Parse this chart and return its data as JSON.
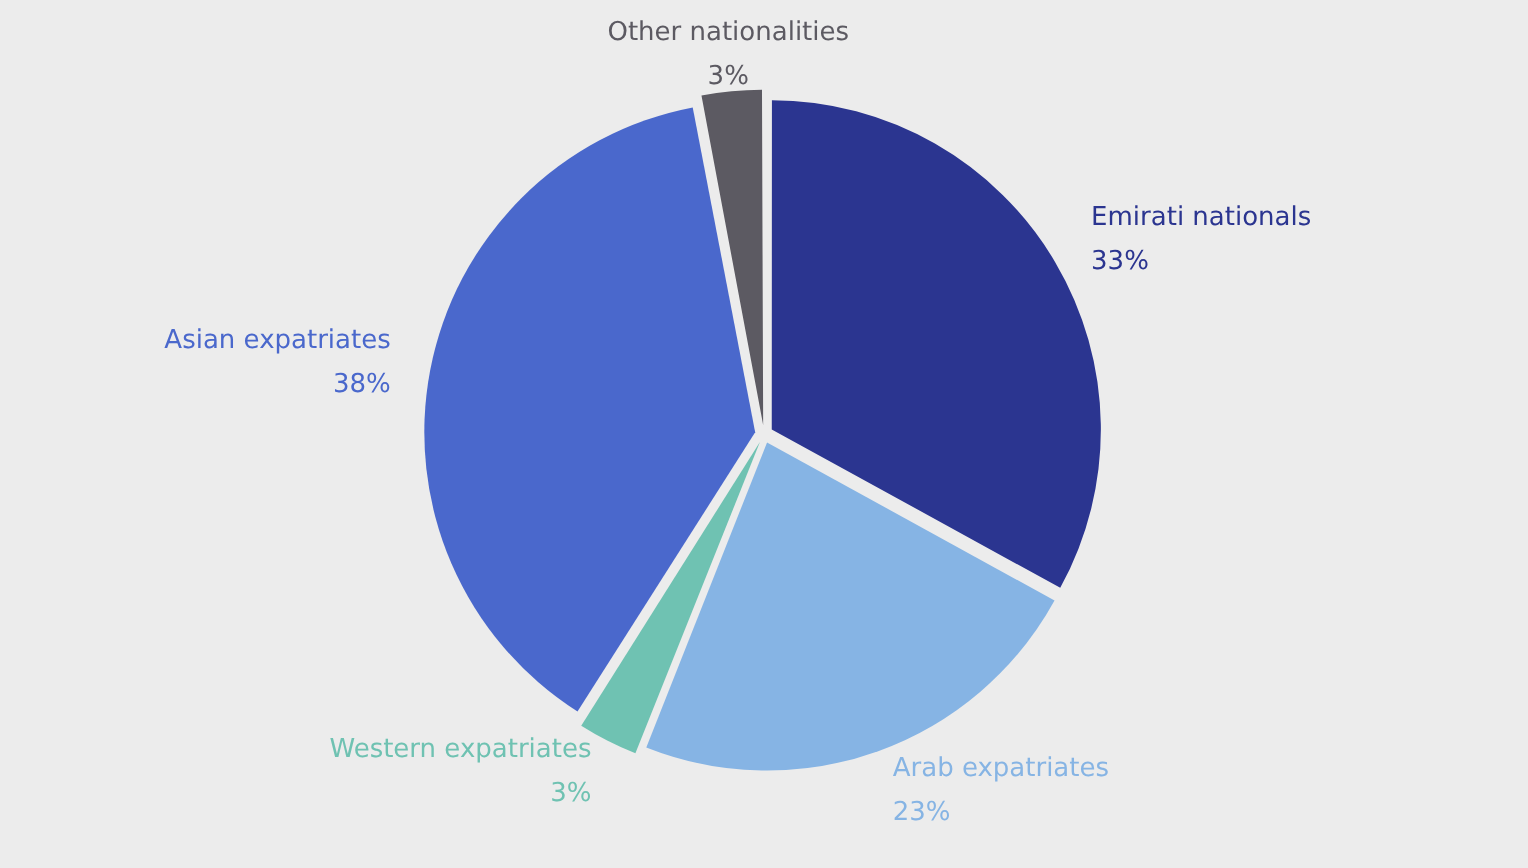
{
  "chart_data": {
    "type": "pie",
    "categories": [
      "Emirati nationals",
      "Arab expatriates",
      "Western expatriates",
      "Asian expatriates",
      "Other nationalities"
    ],
    "values": [
      33,
      23,
      3,
      38,
      3
    ],
    "colors": [
      "#2b3590",
      "#86b4e4",
      "#6fc2b2",
      "#4a68cc",
      "#5c5a62"
    ],
    "value_labels": [
      "33%",
      "23%",
      "3%",
      "38%",
      "3%"
    ],
    "legend": false
  }
}
